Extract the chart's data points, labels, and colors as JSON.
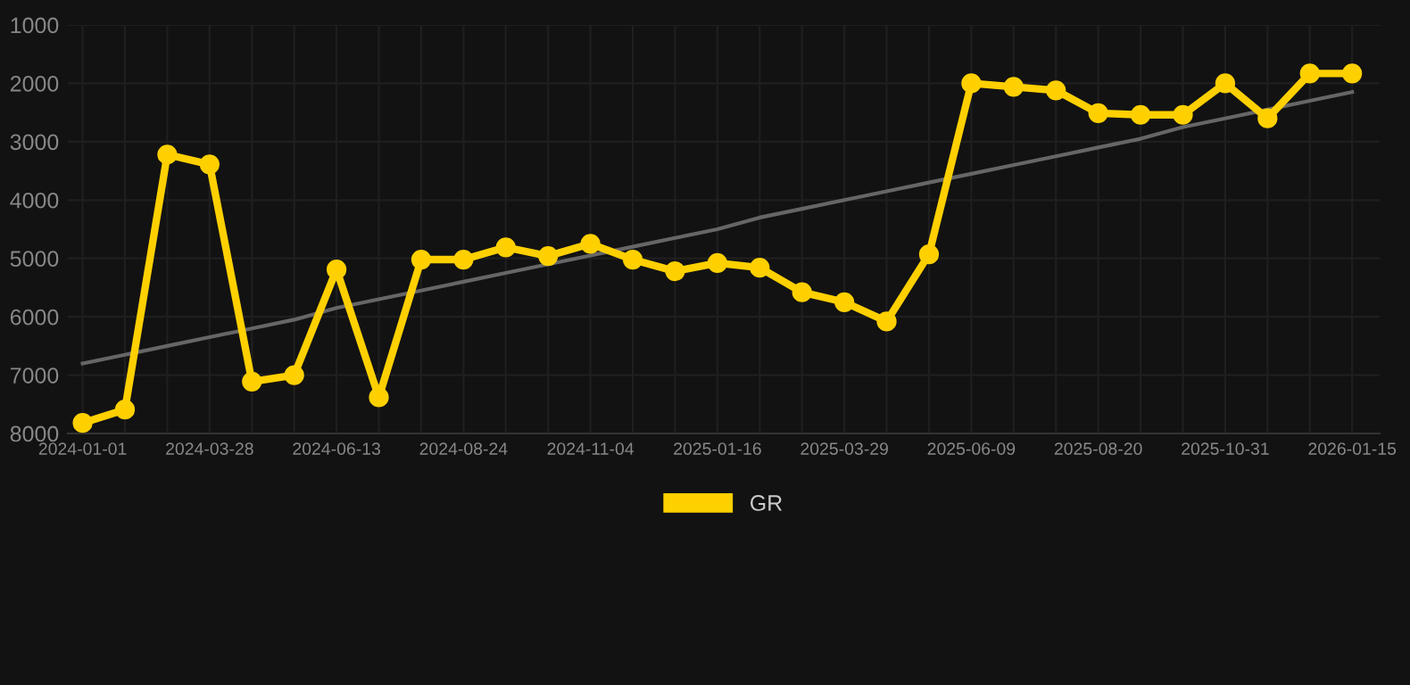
{
  "chart_data": {
    "type": "line",
    "categories": [
      "2024-01-01",
      null,
      null,
      "2024-03-28",
      null,
      null,
      "2024-06-13",
      null,
      null,
      "2024-08-24",
      null,
      null,
      "2024-11-04",
      null,
      null,
      "2025-01-16",
      null,
      null,
      "2025-03-29",
      null,
      null,
      "2025-06-09",
      null,
      null,
      "2025-08-20",
      null,
      null,
      "2025-10-31",
      null,
      null,
      "2026-01-15"
    ],
    "series": [
      {
        "name": "GR",
        "color": "#ffd000",
        "marker": "circle",
        "values": [
          7820,
          7590,
          3220,
          3390,
          7110,
          7000,
          5190,
          7380,
          5020,
          5020,
          4810,
          4960,
          4750,
          5020,
          5220,
          5080,
          5160,
          5580,
          5750,
          6080,
          4930,
          2000,
          2060,
          2120,
          2510,
          2540,
          2540,
          2000,
          2600,
          1830,
          1830
        ]
      },
      {
        "type": "line",
        "color": "#666666",
        "marker": "none",
        "values": [
          6800,
          6650,
          6500,
          6350,
          6200,
          6050,
          5850,
          5700,
          5550,
          5400,
          5250,
          5100,
          4950,
          4800,
          4650,
          4500,
          4300,
          4150,
          4000,
          3850,
          3700,
          3550,
          3400,
          3250,
          3100,
          2950,
          2750,
          2600,
          2450,
          2300,
          2150
        ]
      }
    ],
    "ylim": [
      8000,
      1000
    ],
    "yticks": [
      1000,
      2000,
      3000,
      4000,
      5000,
      6000,
      7000,
      8000
    ],
    "grid": true,
    "legend": "bottom"
  }
}
